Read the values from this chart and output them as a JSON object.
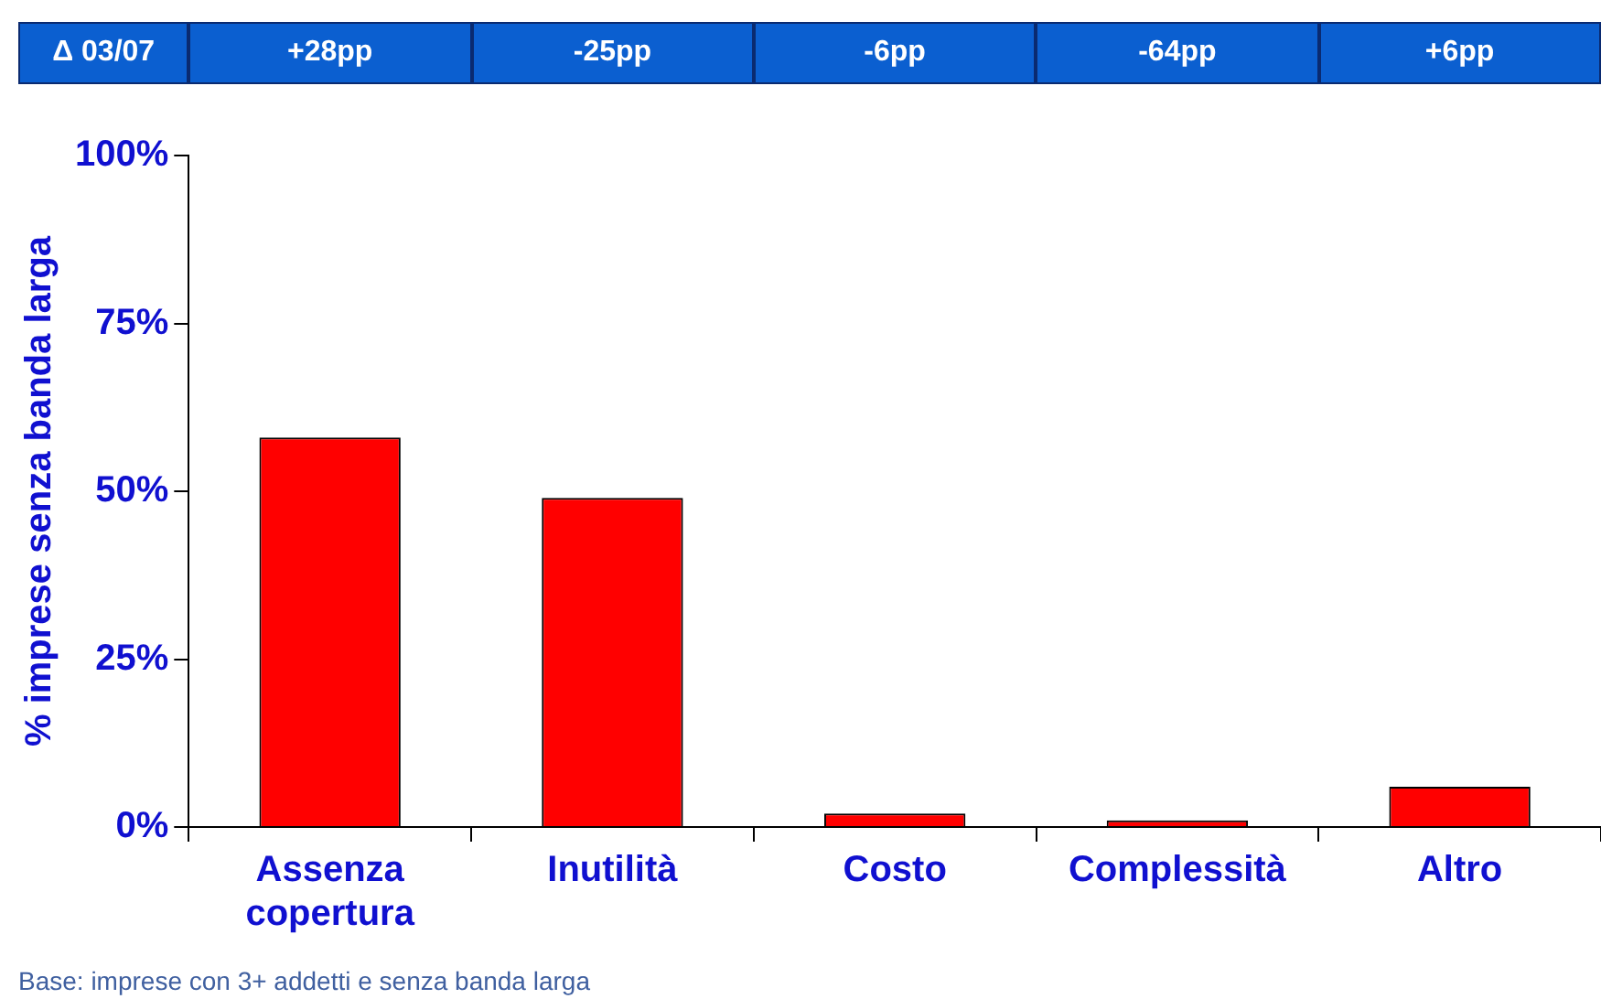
{
  "chart_data": {
    "type": "bar",
    "ylabel": "% imprese senza banda larga",
    "categories": [
      "Assenza copertura",
      "Inutilità",
      "Costo",
      "Complessità",
      "Altro"
    ],
    "values": [
      58,
      49,
      2,
      1,
      6
    ],
    "color": "#ff0000",
    "ylim": [
      0,
      100
    ],
    "yticks": [
      {
        "value": 0,
        "label": "0%"
      },
      {
        "value": 25,
        "label": "25%"
      },
      {
        "value": 50,
        "label": "50%"
      },
      {
        "value": 75,
        "label": "75%"
      },
      {
        "value": 100,
        "label": "100%"
      }
    ],
    "grid": false,
    "legend": false,
    "annotations": [
      "Δ 03/07",
      "Base: imprese con 3+ addetti e senza banda larga",
      "+28pp",
      "-25pp",
      "-6pp",
      "-64pp",
      "+6pp"
    ]
  }
}
